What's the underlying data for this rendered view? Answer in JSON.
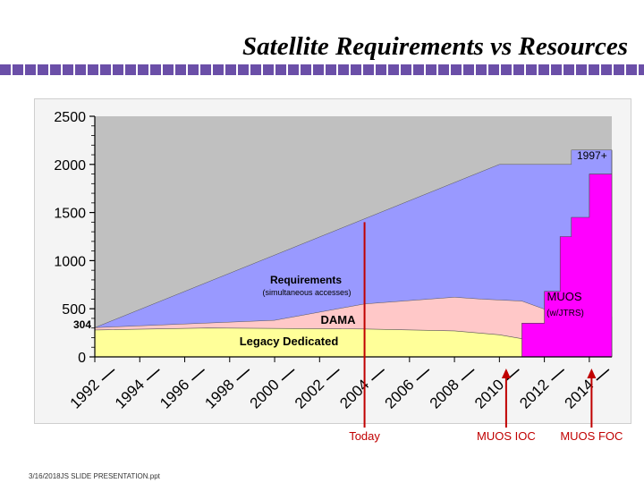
{
  "slide": {
    "title": "Satellite Requirements vs Resources",
    "footer": "3/16/2018JS SLIDE PRESENTATION.ppt"
  },
  "colors": {
    "requirements": "#9999ff",
    "dama": "#ffc8c8",
    "legacy": "#ffff99",
    "muos": "#ff00ff",
    "unmet": "#c0c0c0",
    "marker": "#c00000",
    "title_bar": "#6b4fa8"
  },
  "chart_data": {
    "type": "area",
    "title": "",
    "xlabel": "",
    "ylabel": "",
    "x_range": [
      1992,
      2015
    ],
    "ylim": [
      0,
      2500
    ],
    "y_ticks": [
      0,
      500,
      1000,
      1500,
      2000,
      2500
    ],
    "x_tick_labels": [
      "1992",
      "1994",
      "1996",
      "1998",
      "2000",
      "2002",
      "2004",
      "2006",
      "2008",
      "2010",
      "2012",
      "2014"
    ],
    "series": [
      {
        "name": "Requirements",
        "points": [
          [
            1992,
            304
          ],
          [
            2010,
            2000
          ],
          [
            2013.2,
            2000
          ],
          [
            2013.2,
            2150
          ],
          [
            2015,
            2150
          ]
        ]
      },
      {
        "name": "DAMA",
        "points": [
          [
            1992,
            304
          ],
          [
            2000,
            380
          ],
          [
            2004,
            550
          ],
          [
            2008,
            620
          ],
          [
            2009.2,
            600
          ],
          [
            2011,
            580
          ],
          [
            2012.2,
            480
          ],
          [
            2013.5,
            430
          ],
          [
            2015,
            420
          ]
        ]
      },
      {
        "name": "Legacy Dedicated",
        "points": [
          [
            1992,
            280
          ],
          [
            1997,
            300
          ],
          [
            2004,
            290
          ],
          [
            2008,
            270
          ],
          [
            2010,
            230
          ],
          [
            2012.2,
            140
          ],
          [
            2014,
            80
          ],
          [
            2015,
            80
          ]
        ]
      },
      {
        "name": "MUOS",
        "points": [
          [
            2010.5,
            0
          ],
          [
            2011,
            350
          ],
          [
            2012,
            680
          ],
          [
            2012.7,
            1250
          ],
          [
            2013.2,
            1450
          ],
          [
            2014,
            1900
          ],
          [
            2015,
            2150
          ]
        ]
      }
    ],
    "annotations": {
      "requirements": "Requirements",
      "requirements_sub": "(simultaneous accesses)",
      "dama": "DAMA",
      "legacy": "Legacy Dedicated",
      "muos": "MUOS",
      "muos_sub": "(w/JTRS)",
      "start_value": "304",
      "year_note": "1997+"
    },
    "markers": [
      {
        "label": "Today",
        "year": 2004.0
      },
      {
        "label": "MUOS IOC",
        "year": 2010.3
      },
      {
        "label": "MUOS FOC",
        "year": 2014.1
      }
    ]
  }
}
